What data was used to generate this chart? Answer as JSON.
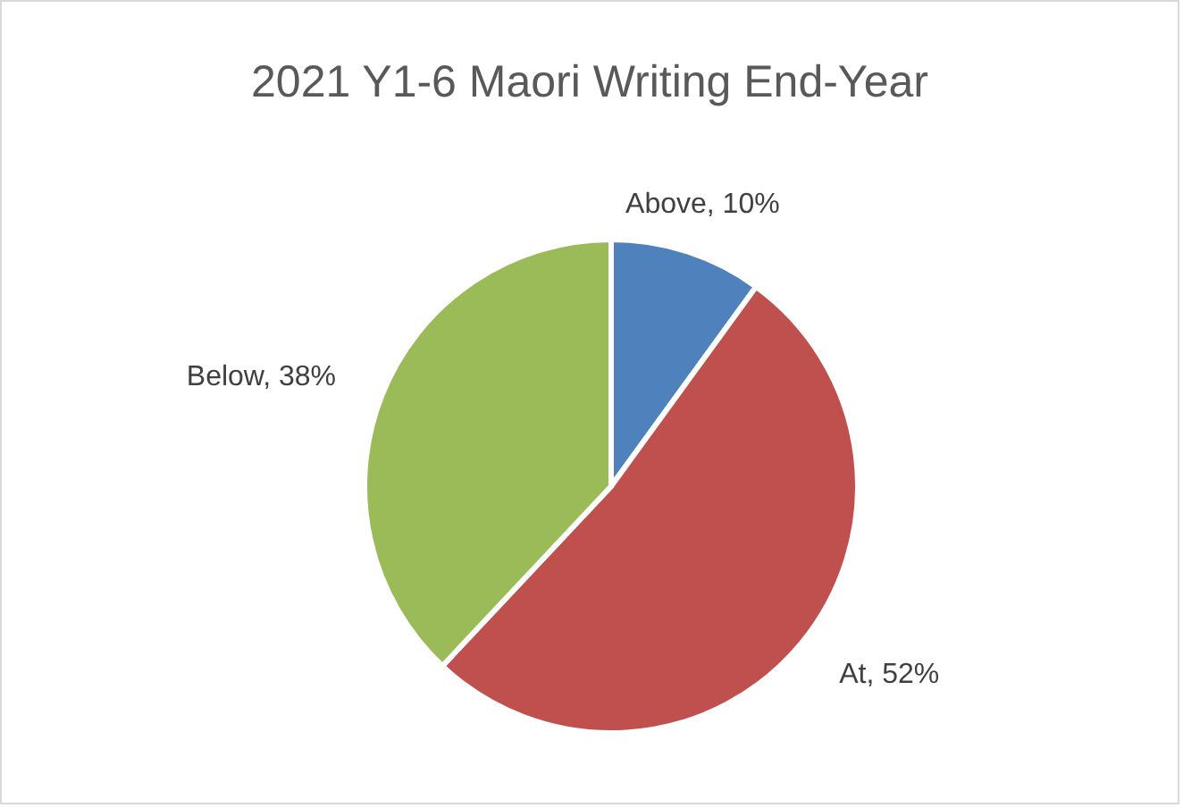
{
  "chart_data": {
    "type": "pie",
    "title": "2021 Y1-6 Maori Writing End-Year",
    "categories": [
      "Above",
      "At",
      "Below"
    ],
    "values": [
      10,
      52,
      38
    ],
    "colors": [
      "#4f81bd",
      "#c0504d",
      "#9bbb59"
    ],
    "value_labels": [
      "10%",
      "52%",
      "38%"
    ]
  }
}
